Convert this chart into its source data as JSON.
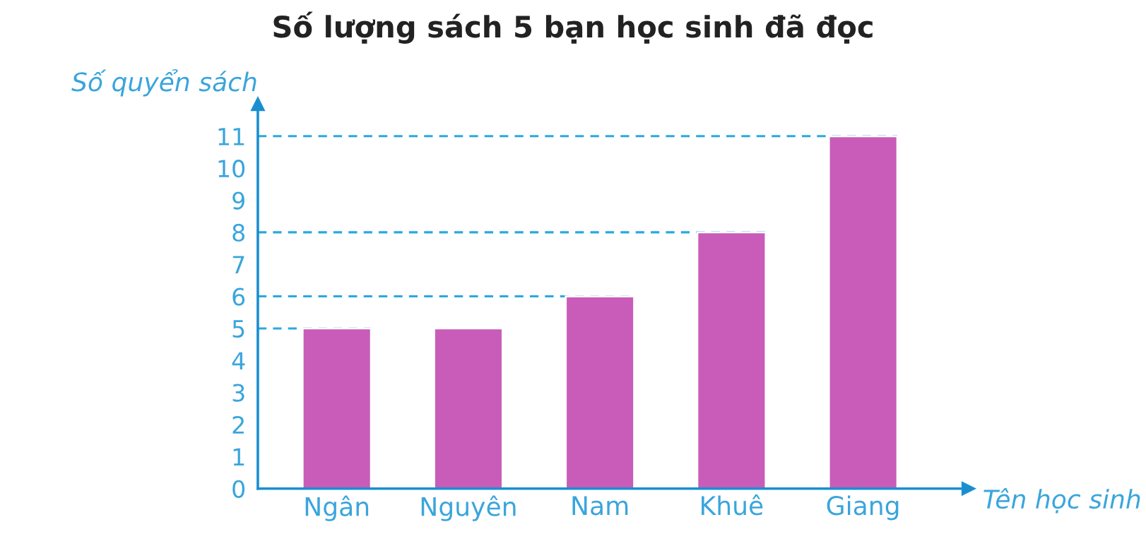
{
  "chart_data": {
    "type": "bar",
    "title": "Số lượng sách 5 bạn học sinh đã đọc",
    "xlabel": "Tên học sinh",
    "ylabel": "Số quyển sách",
    "categories": [
      "Ngân",
      "Nguyên",
      "Nam",
      "Khuê",
      "Giang"
    ],
    "values": [
      5,
      5,
      6,
      8,
      11
    ],
    "color": "#c85cb8",
    "ylim": [
      0,
      12
    ],
    "yticks": [
      0,
      1,
      2,
      3,
      4,
      5,
      6,
      7,
      8,
      9,
      10,
      11
    ],
    "ref_lines": [
      {
        "axis": "y",
        "value": 5,
        "color": "#29a9e0",
        "line_style": "dashed"
      },
      {
        "axis": "y",
        "value": 6,
        "color": "#29a9e0",
        "line_style": "dashed"
      },
      {
        "axis": "y",
        "value": 8,
        "color": "#29a9e0",
        "line_style": "dashed"
      },
      {
        "axis": "y",
        "value": 11,
        "color": "#29a9e0",
        "line_style": "dashed"
      }
    ],
    "grid": false,
    "legend": false
  }
}
